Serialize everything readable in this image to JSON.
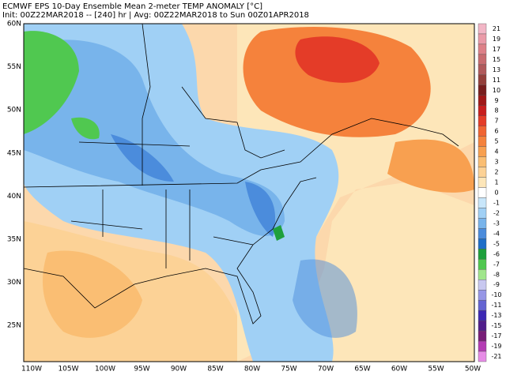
{
  "header": {
    "line1": "ECMWF EPS 10-Day Ensemble Mean 2-meter TEMP ANOMALY [°C]",
    "line2": "Init: 00Z22MAR2018 -- [240] hr | Avg: 00Z22MAR2018 to Sun 00Z01APR2018"
  },
  "latitude_labels": [
    "60N",
    "55N",
    "50N",
    "45N",
    "40N",
    "35N",
    "30N",
    "25N"
  ],
  "longitude_labels": [
    "110W",
    "105W",
    "100W",
    "95W",
    "90W",
    "85W",
    "80W",
    "75W",
    "70W",
    "65W",
    "60W",
    "55W",
    "50W"
  ],
  "colorbar": {
    "levels": [
      21,
      19,
      17,
      15,
      13,
      11,
      10,
      9,
      8,
      7,
      6,
      5,
      4,
      3,
      2,
      1,
      0,
      -1,
      -2,
      -3,
      -4,
      -5,
      -6,
      -7,
      -8,
      -9,
      -10,
      -11,
      -13,
      -15,
      -17,
      -19,
      -21
    ],
    "colors": [
      "#f2b6c6",
      "#ea9aa8",
      "#dd8088",
      "#c86c70",
      "#b05a5c",
      "#94403c",
      "#781e1e",
      "#a01818",
      "#c81e1e",
      "#e43c28",
      "#f06432",
      "#f5823c",
      "#f8a050",
      "#fabe73",
      "#fcd296",
      "#fde6b9",
      "#ffffff",
      "#c8e6fa",
      "#a0d0f5",
      "#78b4eb",
      "#4b8cdc",
      "#1e6ec8",
      "#1ea03c",
      "#50c850",
      "#a0e68c",
      "#c8c8f0",
      "#9696e6",
      "#6464d2",
      "#3c28b4",
      "#501e8c",
      "#781e78",
      "#b43cb4",
      "#e68ce6"
    ]
  }
}
